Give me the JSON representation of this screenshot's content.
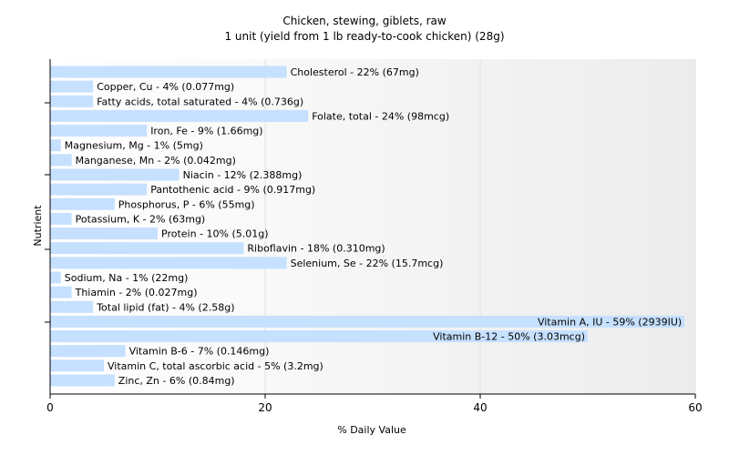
{
  "chart_data": {
    "type": "bar",
    "orientation": "horizontal",
    "title": "Chicken, stewing, giblets, raw",
    "subtitle": "1 unit (yield from 1 lb ready-to-cook chicken) (28g)",
    "xlabel": "% Daily Value",
    "ylabel": "Nutrient",
    "xlim": [
      0,
      60
    ],
    "xticks": [
      0,
      20,
      40,
      60
    ],
    "grid": true,
    "bar_color": "#c6e0ff",
    "categories": [
      "Cholesterol",
      "Copper, Cu",
      "Fatty acids, total saturated",
      "Folate, total",
      "Iron, Fe",
      "Magnesium, Mg",
      "Manganese, Mn",
      "Niacin",
      "Pantothenic acid",
      "Phosphorus, P",
      "Potassium, K",
      "Protein",
      "Riboflavin",
      "Selenium, Se",
      "Sodium, Na",
      "Thiamin",
      "Total lipid (fat)",
      "Vitamin A, IU",
      "Vitamin B-12",
      "Vitamin B-6",
      "Vitamin C, total ascorbic acid",
      "Zinc, Zn"
    ],
    "values": [
      22,
      4,
      4,
      24,
      9,
      1,
      2,
      12,
      9,
      6,
      2,
      10,
      18,
      22,
      1,
      2,
      4,
      59,
      50,
      7,
      5,
      6
    ],
    "labels": [
      "Cholesterol - 22% (67mg)",
      "Copper, Cu - 4% (0.077mg)",
      "Fatty acids, total saturated - 4% (0.736g)",
      "Folate, total - 24% (98mcg)",
      "Iron, Fe - 9% (1.66mg)",
      "Magnesium, Mg - 1% (5mg)",
      "Manganese, Mn - 2% (0.042mg)",
      "Niacin - 12% (2.388mg)",
      "Pantothenic acid - 9% (0.917mg)",
      "Phosphorus, P - 6% (55mg)",
      "Potassium, K - 2% (63mg)",
      "Protein - 10% (5.01g)",
      "Riboflavin - 18% (0.310mg)",
      "Selenium, Se - 22% (15.7mcg)",
      "Sodium, Na - 1% (22mg)",
      "Thiamin - 2% (0.027mg)",
      "Total lipid (fat) - 4% (2.58g)",
      "Vitamin A, IU - 59% (2939IU)",
      "Vitamin B-12 - 50% (3.03mcg)",
      "Vitamin B-6 - 7% (0.146mg)",
      "Vitamin C, total ascorbic acid - 5% (3.2mg)",
      "Zinc, Zn - 6% (0.84mg)"
    ]
  }
}
